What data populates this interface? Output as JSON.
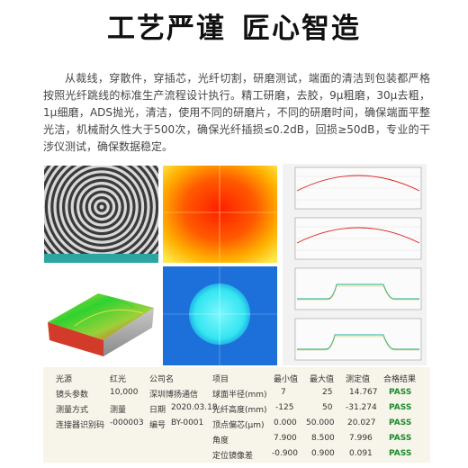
{
  "title_left": "工艺严谨",
  "title_right": "匠心智造",
  "paragraph": "从裁线，穿散件，穿插芯，光纤切割，研磨测试，端面的清洁到包装都严格按照光纤跳线的标准生产流程设计执行。精工研磨，去胶，9μ粗磨，30μ去粗，1μ细磨，ADS抛光，清洁，使用不同的研磨片，不同的研磨时间，确保端面平整光洁，机械耐久性大于500次，确保光纤插损≤0.2dB，回损≥50dB，专业的干涉仪测试，确保数据稳定。",
  "info": [
    {
      "label": "光源",
      "value": "红光"
    },
    {
      "label": "镜头参数",
      "value": "10,000"
    },
    {
      "label": "测量方式",
      "value": "测量"
    },
    {
      "label": "连接器识别码",
      "value": "-000003"
    }
  ],
  "company": [
    {
      "label": "公司名",
      "value": ""
    },
    {
      "label": "",
      "value": "深圳博扬通信"
    },
    {
      "label": "日期",
      "value": "2020.03.18"
    },
    {
      "label": "编号",
      "value": "BY-0001"
    }
  ],
  "results_headers": [
    "项目",
    "最小值",
    "最大值",
    "测定值",
    "合格结果"
  ],
  "results": [
    {
      "item": "球面半径(mm)",
      "min": "7",
      "max": "25",
      "val": "14.767",
      "res": "PASS"
    },
    {
      "item": "光纤高度(mm)",
      "min": "-125",
      "max": "50",
      "val": "-31.274",
      "res": "PASS"
    },
    {
      "item": "顶点偏芯(μm)",
      "min": "0.000",
      "max": "50.000",
      "val": "20.027",
      "res": "PASS"
    },
    {
      "item": "角度",
      "min": "7.900",
      "max": "8.500",
      "val": "7.996",
      "res": "PASS"
    },
    {
      "item": "定位镜像差",
      "min": "-0.900",
      "max": "0.900",
      "val": "0.091",
      "res": "PASS"
    }
  ],
  "colors": {
    "pass": "#1c8c2c",
    "table_bg": "#f7f4ea",
    "panel_blue": "#1d6fd9"
  }
}
